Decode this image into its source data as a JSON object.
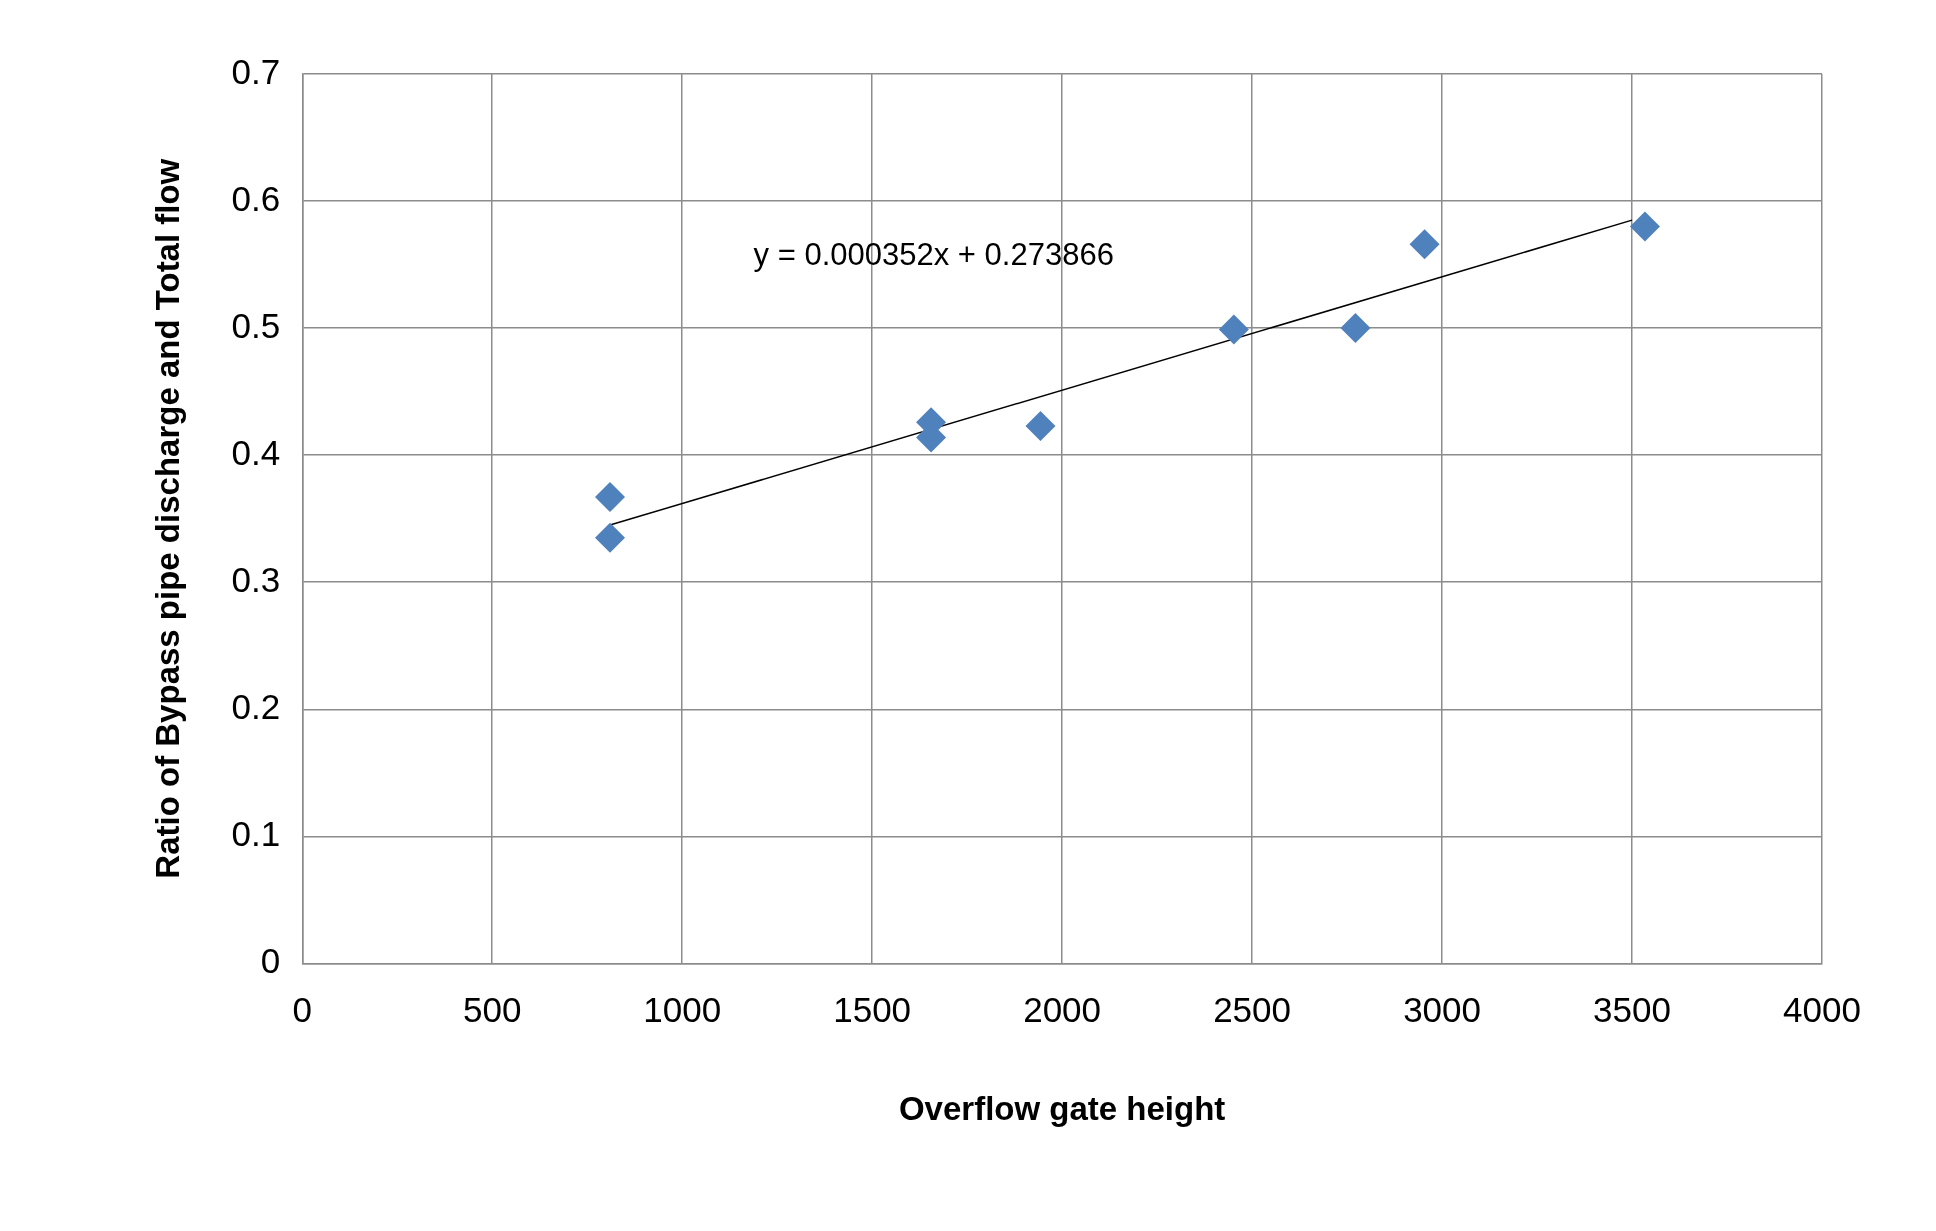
{
  "chart_data": {
    "type": "scatter",
    "xlabel": "Overflow gate height",
    "ylabel": "Ratio of Bypass pipe discharge and Total flow",
    "series": [
      {
        "marker": "diamond",
        "color": "#4f81bd",
        "x": [
          810,
          810,
          1655,
          1655,
          1943,
          2452,
          2772,
          2954,
          3534
        ],
        "values": [
          0.367,
          0.335,
          0.426,
          0.414,
          0.423,
          0.499,
          0.5,
          0.566,
          0.58
        ]
      },
      {
        "type": "line",
        "marker": "none",
        "color": "#000000",
        "x": [
          810,
          3500
        ],
        "values": [
          0.345,
          0.585
        ]
      }
    ],
    "xlim": [
      0,
      4000
    ],
    "xticks": [
      0,
      500,
      1000,
      1500,
      2000,
      2500,
      3000,
      3500,
      4000
    ],
    "ylim": [
      0,
      0.7
    ],
    "yticks": [
      0,
      0.1,
      0.2,
      0.3,
      0.4,
      0.5,
      0.6,
      0.7
    ],
    "grid": true,
    "legend": false,
    "annotations": [
      "y = 0.000352x + 0.273866"
    ]
  }
}
